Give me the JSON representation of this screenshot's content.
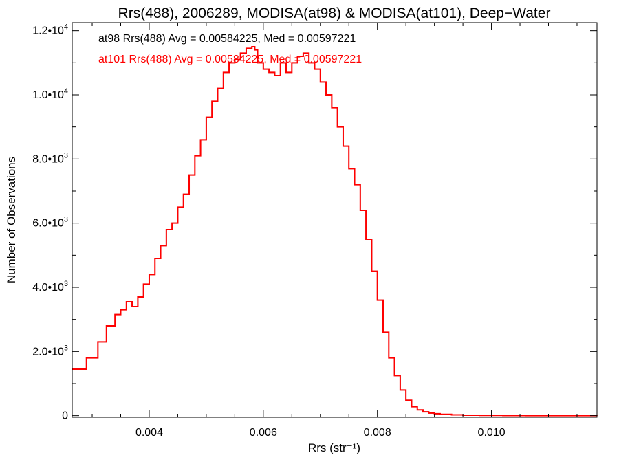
{
  "chart_data": {
    "type": "line",
    "title": "Rrs(488), 2006289, MODISA(at98) & MODISA(at101), Deep−Water",
    "xlabel": "Rrs (str⁻¹)",
    "ylabel": "Number of Observations",
    "xlim": [
      0.00265,
      0.01185
    ],
    "ylim": [
      -50,
      12250
    ],
    "x_ticks": [
      {
        "value": 0.004,
        "label": "0.004"
      },
      {
        "value": 0.006,
        "label": "0.006"
      },
      {
        "value": 0.008,
        "label": "0.008"
      },
      {
        "value": 0.01,
        "label": "0.010"
      }
    ],
    "y_ticks": [
      {
        "value": 0,
        "label": "0"
      },
      {
        "value": 2000,
        "label": "2.0•103"
      },
      {
        "value": 4000,
        "label": "4.0•103"
      },
      {
        "value": 6000,
        "label": "6.0•103"
      },
      {
        "value": 8000,
        "label": "8.0•103"
      },
      {
        "value": 10000,
        "label": "1.0•104"
      },
      {
        "value": 12000,
        "label": "1.2•104"
      }
    ],
    "annotations": [
      {
        "text": "at98 Rrs(488) Avg = 0.00584225, Med = 0.00597221",
        "color": "#000000"
      },
      {
        "text": "at101 Rrs(488) Avg = 0.00584225, Med = 0.00597221",
        "color": "#ff0000"
      }
    ],
    "series": [
      {
        "name": "at98",
        "color": "#000000",
        "x": [
          0.00265,
          0.0029,
          0.0031,
          0.00325,
          0.0034,
          0.0035,
          0.0036,
          0.0037,
          0.0038,
          0.0039,
          0.004,
          0.0041,
          0.0042,
          0.0043,
          0.0044,
          0.0045,
          0.0046,
          0.0047,
          0.0048,
          0.0049,
          0.005,
          0.0051,
          0.0052,
          0.0053,
          0.0054,
          0.0055,
          0.0056,
          0.0057,
          0.0058,
          0.00585,
          0.0059,
          0.006,
          0.0061,
          0.0062,
          0.0063,
          0.0064,
          0.0065,
          0.0066,
          0.0067,
          0.0068,
          0.0069,
          0.007,
          0.0071,
          0.0072,
          0.0073,
          0.0074,
          0.0075,
          0.0076,
          0.0077,
          0.0078,
          0.0079,
          0.008,
          0.0081,
          0.0082,
          0.0083,
          0.0084,
          0.0085,
          0.0086,
          0.0087,
          0.0088,
          0.0089,
          0.009,
          0.0091,
          0.0093,
          0.0095,
          0.0098,
          0.0102,
          0.0106,
          0.01185
        ],
        "values": [
          1450,
          1800,
          2300,
          2800,
          3150,
          3300,
          3550,
          3400,
          3700,
          4100,
          4400,
          4900,
          5300,
          5800,
          6000,
          6500,
          6900,
          7500,
          8100,
          8600,
          9300,
          9800,
          10200,
          10700,
          11000,
          11100,
          11300,
          11450,
          11500,
          11400,
          11000,
          10800,
          10700,
          10600,
          11000,
          10700,
          11000,
          11200,
          11300,
          11000,
          10800,
          10400,
          10000,
          9600,
          9000,
          8400,
          7700,
          7200,
          6400,
          5500,
          4500,
          3600,
          2600,
          1800,
          1250,
          800,
          480,
          280,
          180,
          120,
          80,
          60,
          40,
          25,
          15,
          8,
          4,
          2,
          0
        ]
      },
      {
        "name": "at101",
        "color": "#ff0000",
        "x": [
          0.00265,
          0.0029,
          0.0031,
          0.00325,
          0.0034,
          0.0035,
          0.0036,
          0.0037,
          0.0038,
          0.0039,
          0.004,
          0.0041,
          0.0042,
          0.0043,
          0.0044,
          0.0045,
          0.0046,
          0.0047,
          0.0048,
          0.0049,
          0.005,
          0.0051,
          0.0052,
          0.0053,
          0.0054,
          0.0055,
          0.0056,
          0.0057,
          0.0058,
          0.00585,
          0.0059,
          0.006,
          0.0061,
          0.0062,
          0.0063,
          0.0064,
          0.0065,
          0.0066,
          0.0067,
          0.0068,
          0.0069,
          0.007,
          0.0071,
          0.0072,
          0.0073,
          0.0074,
          0.0075,
          0.0076,
          0.0077,
          0.0078,
          0.0079,
          0.008,
          0.0081,
          0.0082,
          0.0083,
          0.0084,
          0.0085,
          0.0086,
          0.0087,
          0.0088,
          0.0089,
          0.009,
          0.0091,
          0.0093,
          0.0095,
          0.0098,
          0.0102,
          0.0106,
          0.01185
        ],
        "values": [
          1450,
          1800,
          2300,
          2800,
          3150,
          3300,
          3550,
          3400,
          3700,
          4100,
          4400,
          4900,
          5300,
          5800,
          6000,
          6500,
          6900,
          7500,
          8100,
          8600,
          9300,
          9800,
          10200,
          10700,
          11000,
          11100,
          11300,
          11450,
          11500,
          11400,
          11000,
          10800,
          10700,
          10600,
          11000,
          10700,
          11000,
          11200,
          11300,
          11000,
          10800,
          10400,
          10000,
          9600,
          9000,
          8400,
          7700,
          7200,
          6400,
          5500,
          4500,
          3600,
          2600,
          1800,
          1250,
          800,
          480,
          280,
          180,
          120,
          80,
          60,
          40,
          25,
          15,
          8,
          4,
          2,
          0
        ]
      }
    ]
  }
}
